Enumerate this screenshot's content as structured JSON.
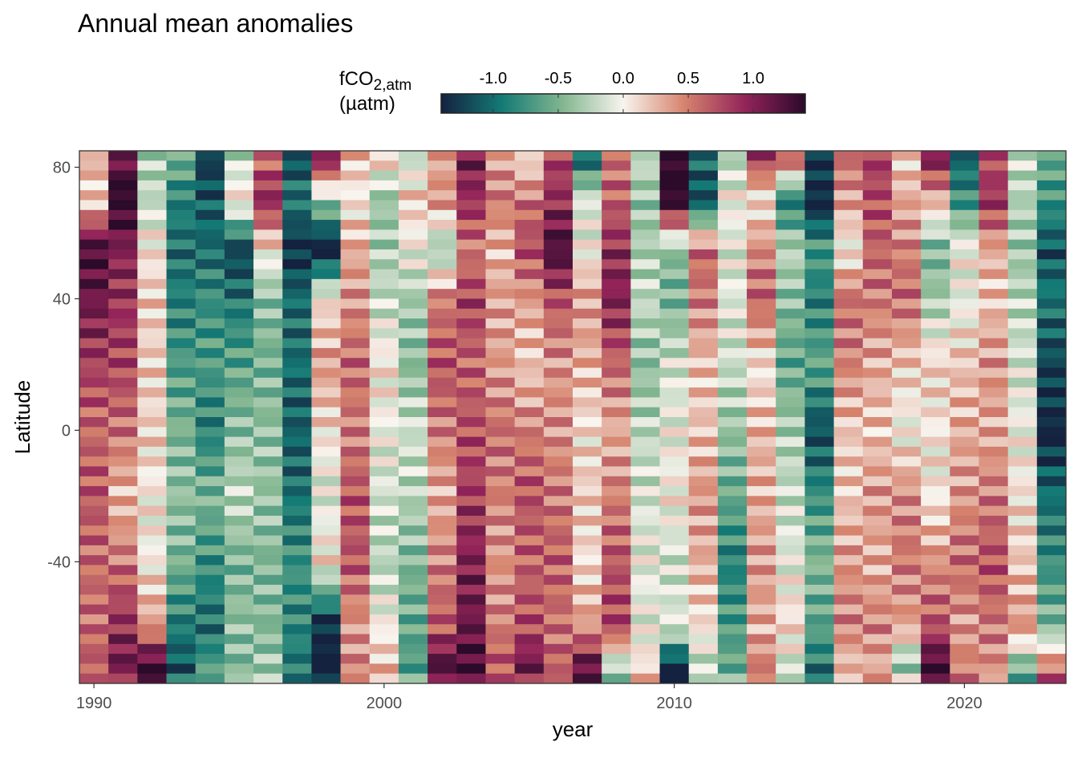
{
  "chart_data": {
    "type": "heatmap",
    "title": "Annual mean anomalies",
    "xlabel": "year",
    "ylabel": "Latitude",
    "x_ticks": [
      1990,
      2000,
      2010,
      2020
    ],
    "y_ticks": [
      80,
      40,
      0,
      -40
    ],
    "xlim": [
      1989.5,
      2023.5
    ],
    "ylim": [
      -77,
      85
    ],
    "legend": {
      "title_main": "fCO",
      "title_sub": "2,atm",
      "title_unit": "(µatm)",
      "placement": "top",
      "range": [
        -1.4,
        1.4
      ],
      "ticks": [
        -1.0,
        -0.5,
        0.0,
        0.5,
        1.0
      ],
      "tick_labels": [
        "-1.0",
        "-0.5",
        "0.0",
        "0.5",
        "1.0"
      ],
      "palette": [
        "#14213f",
        "#147a75",
        "#82b690",
        "#f8f4ee",
        "#d6846e",
        "#93245a",
        "#2b0a2a"
      ]
    },
    "lat_nodes": [
      84,
      70,
      55,
      40,
      20,
      0,
      -20,
      -40,
      -60,
      -72,
      -77
    ],
    "years": [
      1990,
      1991,
      1992,
      1993,
      1994,
      1995,
      1996,
      1997,
      1998,
      1999,
      2000,
      2001,
      2002,
      2003,
      2004,
      2005,
      2006,
      2007,
      2008,
      2009,
      2010,
      2011,
      2012,
      2013,
      2014,
      2015,
      2016,
      2017,
      2018,
      2019,
      2020,
      2021,
      2022,
      2023
    ],
    "values": [
      [
        0.4,
        0.2,
        1.4,
        1.2,
        0.9,
        0.7,
        0.8,
        0.7,
        0.7,
        0.8,
        0.6
      ],
      [
        1.0,
        1.5,
        1.0,
        0.9,
        0.8,
        0.6,
        0.3,
        0.6,
        1.0,
        1.2,
        0.8
      ],
      [
        -0.4,
        -0.3,
        0.0,
        0.1,
        0.1,
        0.1,
        0.0,
        0.0,
        0.4,
        1.4,
        1.4
      ],
      [
        -0.6,
        -1.0,
        -1.1,
        -1.0,
        -0.8,
        -0.6,
        -0.5,
        -0.6,
        -1.0,
        -1.2,
        -1.0
      ],
      [
        -1.4,
        -1.2,
        -1.1,
        -0.9,
        -0.8,
        -1.0,
        -0.6,
        -0.9,
        -1.1,
        -0.8,
        -0.6
      ],
      [
        -0.3,
        0.1,
        -1.3,
        -1.0,
        -0.7,
        -0.5,
        -0.3,
        -0.6,
        -0.5,
        -0.6,
        -0.4
      ],
      [
        0.6,
        1.0,
        0.1,
        -0.4,
        -0.5,
        -0.4,
        -0.4,
        -0.5,
        -0.5,
        -0.4,
        -0.3
      ],
      [
        -1.1,
        -0.8,
        -1.3,
        -0.9,
        -0.9,
        -1.0,
        -0.9,
        -0.7,
        -0.8,
        -0.9,
        -0.8
      ],
      [
        1.3,
        -0.2,
        -1.4,
        0.2,
        0.5,
        0.2,
        0.0,
        0.2,
        -1.3,
        -1.4,
        -1.2
      ],
      [
        0.3,
        0.1,
        0.4,
        0.5,
        0.7,
        0.6,
        0.8,
        0.8,
        0.5,
        0.6,
        0.6
      ],
      [
        0.2,
        -0.4,
        -0.3,
        -0.2,
        0.1,
        0.0,
        -0.1,
        -0.2,
        0.1,
        0.3,
        0.4
      ],
      [
        -0.3,
        0.1,
        -0.1,
        -0.4,
        -0.5,
        -0.2,
        -0.3,
        -0.5,
        -0.6,
        -0.7,
        -0.5
      ],
      [
        0.2,
        0.3,
        -0.5,
        0.4,
        0.6,
        0.4,
        0.2,
        0.4,
        0.6,
        1.2,
        0.9
      ],
      [
        1.0,
        0.8,
        0.4,
        0.7,
        0.5,
        0.6,
        0.7,
        0.9,
        1.0,
        1.2,
        0.9
      ],
      [
        0.3,
        0.5,
        0.2,
        0.3,
        0.3,
        0.5,
        0.4,
        0.3,
        0.4,
        0.6,
        0.5
      ],
      [
        0.1,
        0.6,
        0.8,
        0.4,
        0.2,
        0.5,
        0.7,
        0.6,
        0.7,
        1.1,
        0.8
      ],
      [
        0.9,
        1.0,
        1.4,
        0.8,
        0.5,
        0.5,
        0.6,
        0.7,
        0.6,
        0.7,
        0.6
      ],
      [
        -1.0,
        0.0,
        0.1,
        0.5,
        0.4,
        0.2,
        0.3,
        0.2,
        0.5,
        1.3,
        1.3
      ],
      [
        0.6,
        0.7,
        1.0,
        1.1,
        0.7,
        0.4,
        0.6,
        0.8,
        0.9,
        -0.2,
        -0.3
      ],
      [
        -0.2,
        -0.4,
        -0.3,
        -0.2,
        -0.4,
        -0.2,
        -0.1,
        0.0,
        0.0,
        0.2,
        0.4
      ],
      [
        1.4,
        1.3,
        -0.5,
        -0.6,
        -0.2,
        -0.1,
        0.0,
        -0.2,
        -0.1,
        -1.4,
        -1.4
      ],
      [
        -1.1,
        -1.3,
        0.5,
        0.4,
        0.1,
        0.1,
        0.3,
        0.2,
        0.0,
        -0.3,
        -0.2
      ],
      [
        -0.4,
        -0.1,
        -0.2,
        -0.2,
        -0.3,
        -0.5,
        -0.7,
        -1.0,
        -0.8,
        -0.7,
        -0.6
      ],
      [
        0.9,
        0.0,
        0.4,
        0.6,
        0.0,
        0.2,
        0.2,
        0.3,
        0.2,
        0.4,
        0.5
      ],
      [
        0.9,
        -0.9,
        -0.2,
        -0.4,
        -0.6,
        -0.3,
        -0.2,
        -0.1,
        0.1,
        -0.2,
        -0.4
      ],
      [
        -1.2,
        -1.3,
        -0.6,
        -0.8,
        -0.5,
        -1.1,
        -0.7,
        -0.4,
        -0.6,
        -0.9,
        -1.0
      ],
      [
        0.7,
        0.5,
        0.1,
        0.7,
        0.6,
        0.3,
        0.3,
        0.5,
        0.6,
        0.3,
        0.5
      ],
      [
        0.9,
        0.8,
        0.7,
        0.6,
        0.4,
        0.3,
        0.5,
        0.4,
        0.6,
        0.4,
        0.6
      ],
      [
        0.1,
        0.3,
        0.5,
        0.6,
        0.2,
        0.0,
        0.5,
        0.6,
        0.4,
        -0.4,
        0.3
      ],
      [
        1.0,
        0.2,
        -0.6,
        -0.4,
        0.1,
        0.0,
        0.0,
        0.4,
        0.7,
        1.4,
        1.3
      ],
      [
        -1.2,
        -0.9,
        -0.1,
        -0.2,
        0.1,
        0.2,
        0.3,
        0.5,
        0.3,
        0.4,
        0.5
      ],
      [
        0.6,
        0.8,
        0.2,
        0.1,
        0.3,
        0.2,
        0.4,
        0.6,
        0.4,
        0.3,
        0.2
      ],
      [
        -0.2,
        -0.3,
        -0.4,
        -0.3,
        -0.2,
        -0.1,
        0.0,
        0.1,
        0.3,
        -0.6,
        -0.9
      ],
      [
        -0.5,
        -0.7,
        -1.1,
        -0.9,
        -1.2,
        -1.4,
        -1.0,
        -0.8,
        -0.5,
        0.5,
        0.7
      ]
    ]
  }
}
